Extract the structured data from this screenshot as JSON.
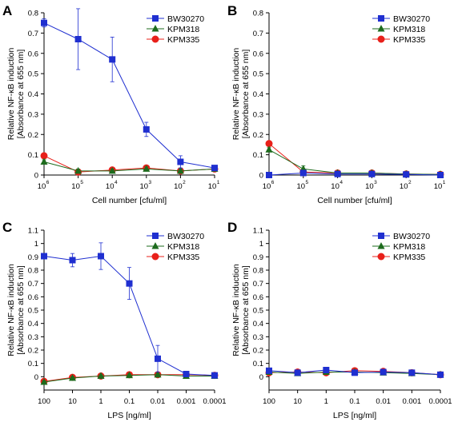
{
  "figure": {
    "title": ""
  },
  "colors": {
    "BW30270": "#1f2fd0",
    "KPM318": "#1d6b1d",
    "KPM335": "#e8201a",
    "axis": "#000000"
  },
  "legend": [
    "BW30270",
    "KPM318",
    "KPM335"
  ],
  "chart_data": [
    {
      "panel": "A",
      "type": "line",
      "ylabel": [
        "Relative NF-κB induction",
        "[Absorbance at 655 nm]"
      ],
      "xlabel": "Cell number [cfu/ml]",
      "x_scale": "log-descending",
      "x": [
        1000000,
        100000,
        10000,
        1000,
        100,
        10
      ],
      "x_ticks": [
        {
          "base": "10",
          "exp": "6"
        },
        {
          "base": "10",
          "exp": "5"
        },
        {
          "base": "10",
          "exp": "4"
        },
        {
          "base": "10",
          "exp": "3"
        },
        {
          "base": "10",
          "exp": "2"
        },
        {
          "base": "10",
          "exp": "1"
        }
      ],
      "ylim": [
        0,
        0.8
      ],
      "y_ticks": [
        "0",
        "0.1",
        "0.2",
        "0.3",
        "0.4",
        "0.5",
        "0.6",
        "0.7",
        "0.8"
      ],
      "legend_position": "top-right",
      "series": [
        {
          "name": "BW30270",
          "marker": "square",
          "values": [
            0.75,
            0.67,
            0.57,
            0.225,
            0.065,
            0.035
          ],
          "error": [
            0.02,
            0.15,
            0.11,
            0.035,
            0.03,
            0.01
          ]
        },
        {
          "name": "KPM318",
          "marker": "triangle",
          "values": [
            0.065,
            0.02,
            0.02,
            0.03,
            0.02,
            0.03
          ],
          "error": [
            0.01,
            0.01,
            0.01,
            0.01,
            0.01,
            0.01
          ]
        },
        {
          "name": "KPM335",
          "marker": "circle",
          "values": [
            0.095,
            0.015,
            0.025,
            0.035,
            0.02,
            0.03
          ],
          "error": [
            0.01,
            0.01,
            0.01,
            0.01,
            0.01,
            0.01
          ]
        }
      ]
    },
    {
      "panel": "B",
      "type": "line",
      "ylabel": [
        "Relative NF-κB induction",
        "[Absorbance at 655 nm]"
      ],
      "xlabel": "Cell number [cfu/ml]",
      "x_scale": "log-descending",
      "x": [
        1000000,
        100000,
        10000,
        1000,
        100,
        10
      ],
      "x_ticks": [
        {
          "base": "10",
          "exp": "6"
        },
        {
          "base": "10",
          "exp": "5"
        },
        {
          "base": "10",
          "exp": "4"
        },
        {
          "base": "10",
          "exp": "3"
        },
        {
          "base": "10",
          "exp": "2"
        },
        {
          "base": "10",
          "exp": "1"
        }
      ],
      "ylim": [
        0,
        0.8
      ],
      "y_ticks": [
        "0",
        "0.1",
        "0.2",
        "0.3",
        "0.4",
        "0.5",
        "0.6",
        "0.7",
        "0.8"
      ],
      "legend_position": "top-right",
      "series": [
        {
          "name": "BW30270",
          "marker": "square",
          "values": [
            0.0,
            0.01,
            0.005,
            0.005,
            0.003,
            0.0
          ],
          "error": [
            0.005,
            0.01,
            0.005,
            0.005,
            0.005,
            0.003
          ]
        },
        {
          "name": "KPM318",
          "marker": "triangle",
          "values": [
            0.125,
            0.03,
            0.01,
            0.01,
            0.005,
            0.003
          ],
          "error": [
            0.01,
            0.015,
            0.005,
            0.005,
            0.005,
            0.003
          ]
        },
        {
          "name": "KPM335",
          "marker": "circle",
          "values": [
            0.155,
            0.015,
            0.01,
            0.01,
            0.005,
            0.003
          ],
          "error": [
            0.01,
            0.01,
            0.005,
            0.005,
            0.005,
            0.003
          ]
        }
      ]
    },
    {
      "panel": "C",
      "type": "line",
      "ylabel": [
        "Relative NF-κB induction",
        "[Absorbance at 655 nm]"
      ],
      "xlabel": "LPS [ng/ml]",
      "x_scale": "log-descending",
      "x": [
        100,
        10,
        1,
        0.1,
        0.01,
        0.001,
        0.0001
      ],
      "x_ticks": [
        {
          "base": "100",
          "exp": ""
        },
        {
          "base": "10",
          "exp": ""
        },
        {
          "base": "1",
          "exp": ""
        },
        {
          "base": "0.1",
          "exp": ""
        },
        {
          "base": "0.01",
          "exp": ""
        },
        {
          "base": "0.001",
          "exp": ""
        },
        {
          "base": "0.0001",
          "exp": ""
        }
      ],
      "ylim": [
        -0.1,
        1.1
      ],
      "y_ticks": [
        "0",
        "0.1",
        "0.2",
        "0.3",
        "0.4",
        "0.5",
        "0.6",
        "0.7",
        "0.8",
        "0.9",
        "1",
        "1.1"
      ],
      "legend_position": "top-right",
      "series": [
        {
          "name": "BW30270",
          "marker": "square",
          "values": [
            0.905,
            0.875,
            0.905,
            0.7,
            0.135,
            0.02,
            0.01
          ],
          "error": [
            0.02,
            0.05,
            0.1,
            0.12,
            0.1,
            0.02,
            0.01
          ]
        },
        {
          "name": "KPM318",
          "marker": "triangle",
          "values": [
            -0.04,
            -0.01,
            0.005,
            0.01,
            0.015,
            0.005,
            0.005
          ],
          "error": [
            0.01,
            0.01,
            0.01,
            0.01,
            0.01,
            0.01,
            0.01
          ]
        },
        {
          "name": "KPM335",
          "marker": "circle",
          "values": [
            -0.035,
            -0.005,
            0.005,
            0.015,
            0.015,
            0.015,
            0.01
          ],
          "error": [
            0.01,
            0.01,
            0.01,
            0.01,
            0.01,
            0.01,
            0.01
          ]
        }
      ]
    },
    {
      "panel": "D",
      "type": "line",
      "ylabel": [
        "Relative NF-κB induction",
        "[Absorbance at 655 nm]"
      ],
      "xlabel": "LPS [ng/ml]",
      "x_scale": "log-descending",
      "x": [
        100,
        10,
        1,
        0.1,
        0.01,
        0.001,
        0.0001
      ],
      "x_ticks": [
        {
          "base": "100",
          "exp": ""
        },
        {
          "base": "10",
          "exp": ""
        },
        {
          "base": "1",
          "exp": ""
        },
        {
          "base": "0.1",
          "exp": ""
        },
        {
          "base": "0.01",
          "exp": ""
        },
        {
          "base": "0.001",
          "exp": ""
        },
        {
          "base": "0.0001",
          "exp": ""
        }
      ],
      "ylim": [
        -0.1,
        1.1
      ],
      "y_ticks": [
        "0",
        "0.1",
        "0.2",
        "0.3",
        "0.4",
        "0.5",
        "0.6",
        "0.7",
        "0.8",
        "0.9",
        "1",
        "1.1"
      ],
      "legend_position": "top-right",
      "series": [
        {
          "name": "BW30270",
          "marker": "square",
          "values": [
            0.045,
            0.03,
            0.05,
            0.03,
            0.035,
            0.03,
            0.015
          ],
          "error": [
            0.01,
            0.01,
            0.01,
            0.01,
            0.01,
            0.01,
            0.01
          ]
        },
        {
          "name": "KPM318",
          "marker": "triangle",
          "values": [
            0.035,
            0.025,
            0.035,
            0.035,
            0.03,
            0.025,
            0.015
          ],
          "error": [
            0.01,
            0.01,
            0.01,
            0.01,
            0.01,
            0.01,
            0.01
          ]
        },
        {
          "name": "KPM335",
          "marker": "circle",
          "values": [
            0.03,
            0.035,
            0.03,
            0.045,
            0.04,
            0.03,
            0.015
          ],
          "error": [
            0.01,
            0.01,
            0.01,
            0.01,
            0.01,
            0.01,
            0.01
          ]
        }
      ]
    }
  ]
}
